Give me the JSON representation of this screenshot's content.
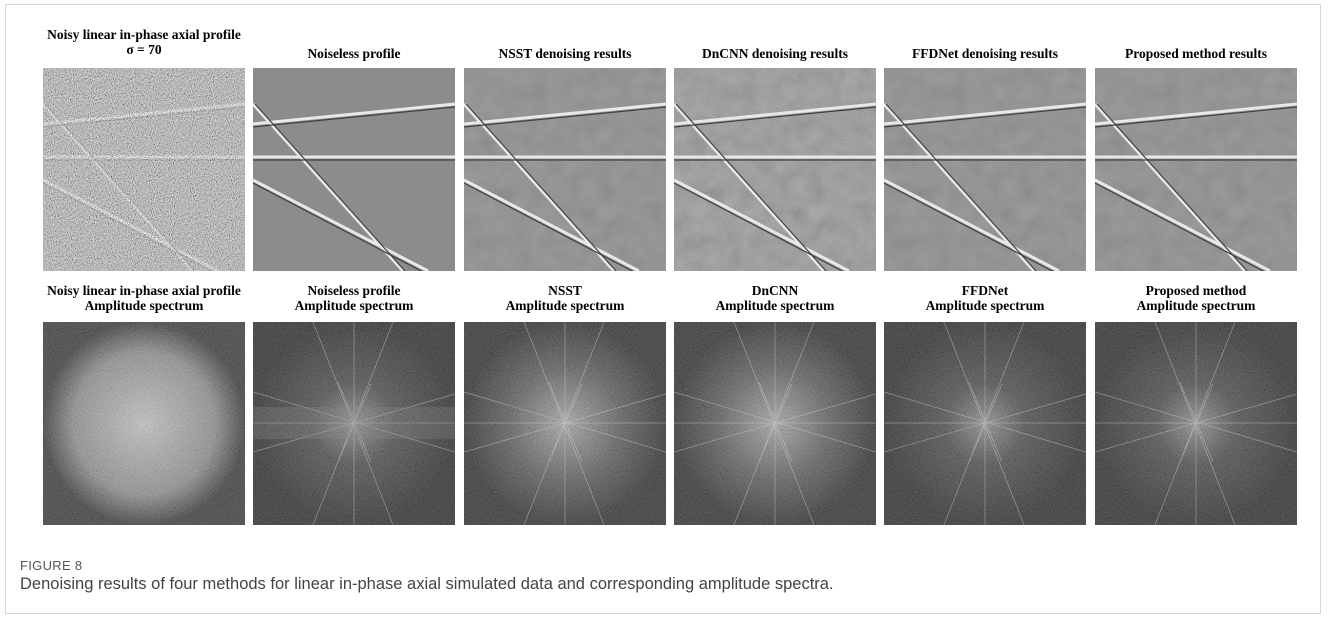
{
  "figure": {
    "rows": [
      [
        {
          "title": [
            "Noisy linear in-phase axial profile",
            "σ = 70"
          ]
        },
        {
          "title": [
            "Noiseless profile"
          ]
        },
        {
          "title": [
            "NSST denoising results"
          ]
        },
        {
          "title": [
            "DnCNN denoising results"
          ]
        },
        {
          "title": [
            "FFDNet denoising results"
          ]
        },
        {
          "title": [
            "Proposed method results"
          ]
        }
      ],
      [
        {
          "title": [
            "Noisy linear in-phase axial profile",
            "Amplitude spectrum"
          ]
        },
        {
          "title": [
            "Noiseless profile",
            "Amplitude spectrum"
          ]
        },
        {
          "title": [
            "NSST",
            "Amplitude spectrum"
          ]
        },
        {
          "title": [
            "DnCNN",
            "Amplitude spectrum"
          ]
        },
        {
          "title": [
            "FFDNet",
            "Amplitude spectrum"
          ]
        },
        {
          "title": [
            "Proposed method",
            "Amplitude spectrum"
          ]
        }
      ]
    ],
    "label": "FIGURE 8",
    "caption": "Denoising results of four methods for linear in-phase axial simulated data and corresponding amplitude spectra."
  }
}
